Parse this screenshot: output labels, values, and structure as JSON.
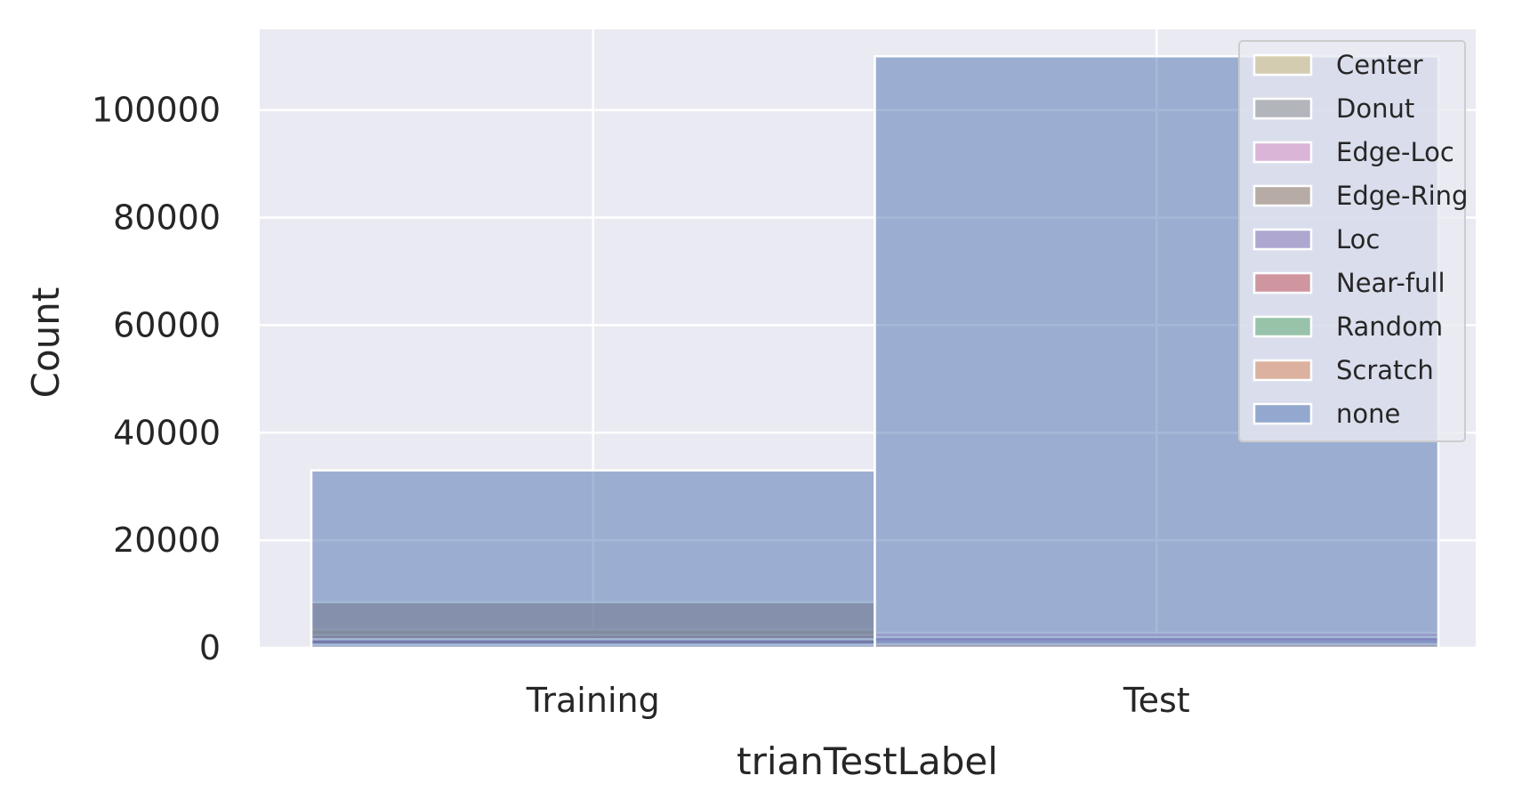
{
  "chart_data": {
    "type": "bar",
    "stacked": false,
    "overlaid": true,
    "categories": [
      "Training",
      "Test"
    ],
    "xlabel": "trianTestLabel",
    "ylabel": "Count",
    "ylim": [
      0,
      115000
    ],
    "yticks": [
      0,
      20000,
      40000,
      60000,
      80000,
      100000
    ],
    "ytick_labels": [
      "0",
      "20000",
      "40000",
      "60000",
      "80000",
      "100000"
    ],
    "grid": true,
    "legend_position": "top-right",
    "series": [
      {
        "name": "Center",
        "color": "#ccb974",
        "values": [
          3400,
          900
        ]
      },
      {
        "name": "Donut",
        "color": "#8c8c8c",
        "values": [
          400,
          100
        ]
      },
      {
        "name": "Edge-Loc",
        "color": "#da8bc3",
        "values": [
          2400,
          2800
        ]
      },
      {
        "name": "Edge-Ring",
        "color": "#937860",
        "values": [
          8500,
          1200
        ]
      },
      {
        "name": "Loc",
        "color": "#8172b3",
        "values": [
          1600,
          2000
        ]
      },
      {
        "name": "Near-full",
        "color": "#c44e52",
        "values": [
          50,
          100
        ]
      },
      {
        "name": "Random",
        "color": "#55a868",
        "values": [
          600,
          300
        ]
      },
      {
        "name": "Scratch",
        "color": "#dd8452",
        "values": [
          500,
          700
        ]
      },
      {
        "name": "none",
        "color": "#4c72b0",
        "values": [
          33000,
          110000
        ]
      }
    ]
  }
}
